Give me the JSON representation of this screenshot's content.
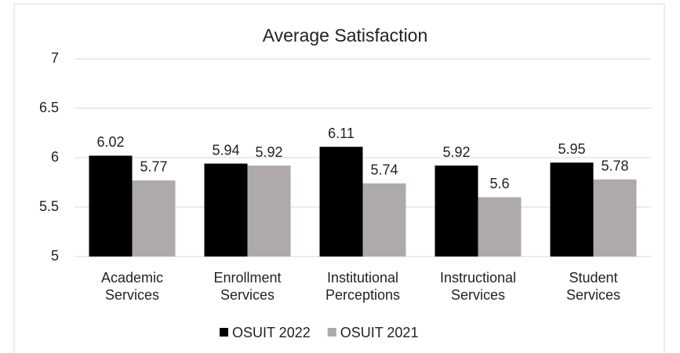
{
  "chart_data": {
    "type": "bar",
    "title": "Average Satisfaction",
    "categories": [
      "Academic Services",
      "Enrollment Services",
      "Institutional Perceptions",
      "Instructional Services",
      "Student Services"
    ],
    "series": [
      {
        "name": "OSUIT 2022",
        "color": "#000000",
        "values": [
          6.02,
          5.94,
          6.11,
          5.92,
          5.95
        ]
      },
      {
        "name": "OSUIT 2021",
        "color": "#aeaaaa",
        "values": [
          5.77,
          5.92,
          5.74,
          5.6,
          5.78
        ]
      }
    ],
    "ylim": [
      5,
      7
    ],
    "yticks": [
      5,
      5.5,
      6,
      6.5,
      7
    ],
    "grid": true,
    "legend": "bottom"
  }
}
